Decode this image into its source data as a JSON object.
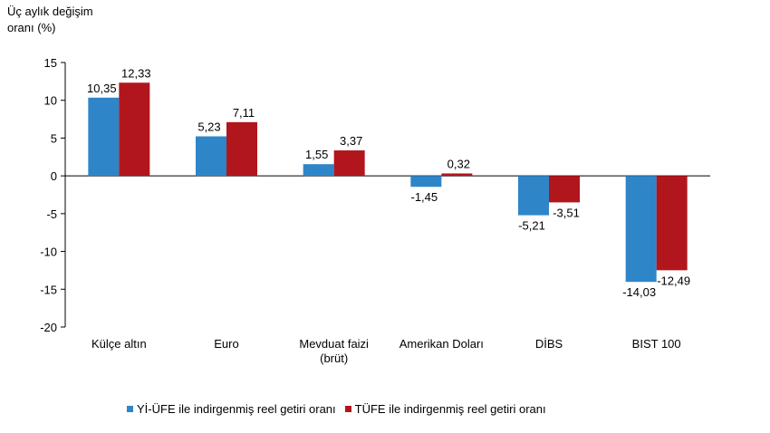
{
  "chart_data": {
    "type": "bar",
    "ylabel_lines": [
      "Üç aylık değişim",
      "oranı (%)"
    ],
    "categories": [
      [
        "Külçe altın"
      ],
      [
        "Euro"
      ],
      [
        "Mevduat faizi",
        "(brüt)"
      ],
      [
        "Amerikan Doları"
      ],
      [
        "DİBS"
      ],
      [
        "BIST 100"
      ]
    ],
    "series": [
      {
        "name": "Yİ-ÜFE ile indirgenmiş reel getiri oranı",
        "color": "#2e86c9",
        "values": [
          10.35,
          5.23,
          1.55,
          -1.45,
          -5.21,
          -14.03
        ],
        "labels": [
          "10,35",
          "5,23",
          "1,55",
          "-1,45",
          "-5,21",
          "-14,03"
        ]
      },
      {
        "name": "TÜFE ile indirgenmiş reel getiri oranı",
        "color": "#b2161d",
        "values": [
          12.33,
          7.11,
          3.37,
          0.32,
          -3.51,
          -12.49
        ],
        "labels": [
          "12,33",
          "7,11",
          "3,37",
          "0,32",
          "-3,51",
          "-12,49"
        ]
      }
    ],
    "ylim": [
      -20,
      15
    ],
    "yticks": [
      15,
      10,
      5,
      0,
      -5,
      -10,
      -15,
      -20
    ],
    "grid": false,
    "legend_position": "bottom"
  }
}
